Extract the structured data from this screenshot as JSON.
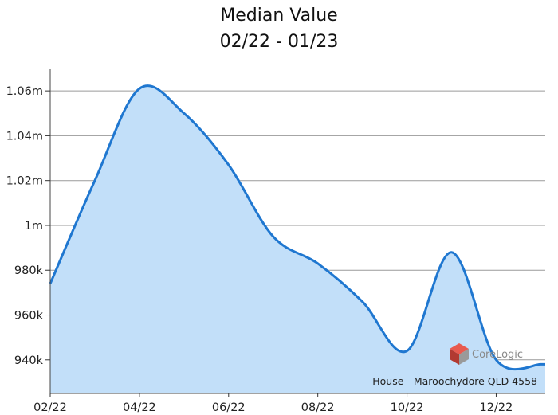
{
  "chart_data": {
    "type": "area",
    "title": "Median Value",
    "subtitle": "02/22 - 01/23",
    "xlabel": "",
    "ylabel": "",
    "x": [
      "02/22",
      "03/22",
      "04/22",
      "05/22",
      "06/22",
      "07/22",
      "08/22",
      "09/22",
      "10/22",
      "11/22",
      "12/22",
      "01/23"
    ],
    "x_tick_labels": [
      "02/22",
      "04/22",
      "06/22",
      "08/22",
      "10/22",
      "12/22"
    ],
    "series": [
      {
        "values": [
          974000,
          1020000,
          1061000,
          1050000,
          1027000,
          995000,
          983000,
          966000,
          944000,
          988000,
          940000,
          938000
        ]
      }
    ],
    "ylim": [
      925000,
      1070000
    ],
    "y_ticks": [
      940000,
      960000,
      980000,
      1000000,
      1020000,
      1040000,
      1060000
    ],
    "y_tick_labels": [
      "940k",
      "960k",
      "980k",
      "1m",
      "1.02m",
      "1.04m",
      "1.06m"
    ],
    "grid": "horizontal",
    "line_color": "#1f77d0",
    "fill_color": "#c2dff9"
  },
  "annotation": {
    "property": "House - Maroochydore QLD 4558"
  },
  "logo": {
    "name": "corelogic-logo",
    "text": "CoreLogic"
  }
}
